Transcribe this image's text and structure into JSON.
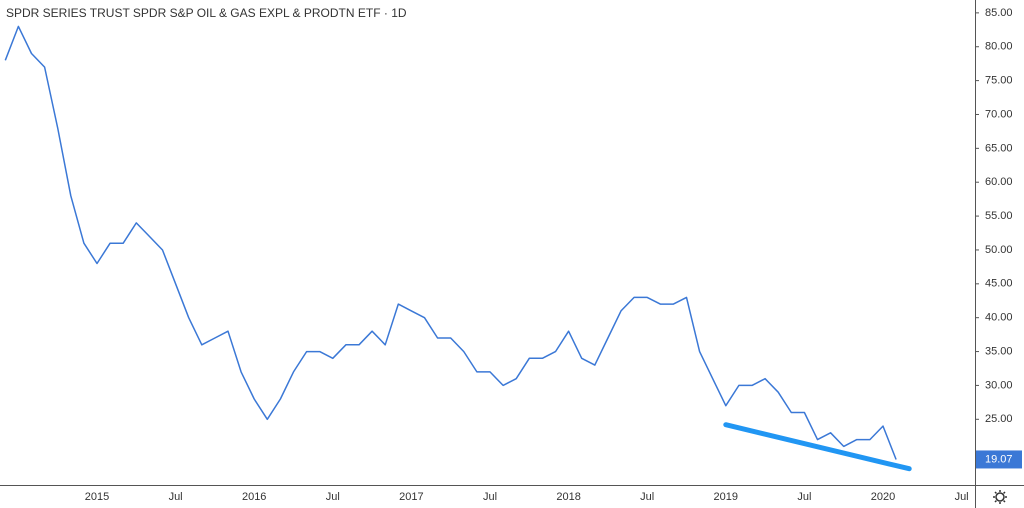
{
  "chart_data": {
    "type": "line",
    "title": "SPDR SERIES TRUST SPDR S&P OIL & GAS EXPL & PRODTN ETF · 1D",
    "categories": [
      null,
      null,
      null,
      null,
      null,
      null,
      null,
      "2015",
      null,
      null,
      null,
      null,
      null,
      "Jul",
      null,
      null,
      null,
      null,
      null,
      "2016",
      null,
      null,
      null,
      null,
      null,
      "Jul",
      null,
      null,
      null,
      null,
      null,
      "2017",
      null,
      null,
      null,
      null,
      null,
      "Jul",
      null,
      null,
      null,
      null,
      null,
      "2018",
      null,
      null,
      null,
      null,
      null,
      "Jul",
      null,
      null,
      null,
      null,
      null,
      "2019",
      null,
      null,
      null,
      null,
      null,
      "Jul",
      null,
      null,
      null,
      null,
      null,
      "2020",
      null,
      null,
      null,
      null,
      null,
      "Jul"
    ],
    "values": [
      78,
      83,
      79,
      77,
      68,
      58,
      51,
      48,
      51,
      51,
      54,
      52,
      50,
      45,
      40,
      36,
      37,
      38,
      32,
      28,
      25,
      28,
      32,
      35,
      35,
      34,
      36,
      36,
      38,
      36,
      42,
      41,
      40,
      37,
      37,
      35,
      32,
      32,
      30,
      31,
      34,
      34,
      35,
      38,
      34,
      33,
      37,
      41,
      43,
      43,
      42,
      42,
      43,
      35,
      31,
      27,
      30,
      30,
      31,
      29,
      26,
      26,
      22,
      23,
      21,
      22,
      22,
      24,
      19.07,
      null,
      null,
      null,
      null,
      null
    ],
    "color": "#3b78d6",
    "ylim": [
      15.3,
      86.9
    ],
    "yticks": [
      {
        "value": 25,
        "label": "25.00"
      },
      {
        "value": 30,
        "label": "30.00"
      },
      {
        "value": 35,
        "label": "35.00"
      },
      {
        "value": 40,
        "label": "40.00"
      },
      {
        "value": 45,
        "label": "45.00"
      },
      {
        "value": 50,
        "label": "50.00"
      },
      {
        "value": 55,
        "label": "55.00"
      },
      {
        "value": 60,
        "label": "60.00"
      },
      {
        "value": 65,
        "label": "65.00"
      },
      {
        "value": 70,
        "label": "70.00"
      },
      {
        "value": 75,
        "label": "75.00"
      },
      {
        "value": 80,
        "label": "80.00"
      },
      {
        "value": 85,
        "label": "85.00"
      }
    ],
    "grid": false,
    "trendline": {
      "color": "#2196f3",
      "x": [
        55,
        69
      ],
      "values": [
        24.2,
        17.7
      ]
    }
  }
}
